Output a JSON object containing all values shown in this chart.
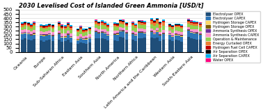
{
  "title": "2030 Levelised Cost of Islanded Green Ammonia [USD/t]",
  "regions": [
    "Oceania",
    "Europe",
    "Sub-Saharan Africa",
    "Eastern Asia",
    "Southern Asia",
    "North America",
    "Northern Africa",
    "Latin America and the Caribbean",
    "Western Asia",
    "South-Eastern Asia"
  ],
  "legend_labels": [
    "Electrolyser OPEX",
    "Electrolyser CAPEX",
    "Hydrogen Storage CAPEX",
    "Hydrogen Storage OPEX",
    "Ammonia Synthesis OPEX",
    "Ammonia Synthesis CAPEX",
    "Operation & Maintenance",
    "Energy Curtailed OPEX",
    "Hydrogen Fuel Cell CAPEX",
    "Air Separation OPEX",
    "Air Separation CAPEX",
    "Water OPEX"
  ],
  "colors": [
    "#1f4e79",
    "#2e75b6",
    "#ffd966",
    "#7f6000",
    "#7030a0",
    "#ff99cc",
    "#92d050",
    "#ed7d31",
    "#c00000",
    "#000000",
    "#00b0f0",
    "#ff0080"
  ],
  "data": [
    [
      150,
      145,
      135,
      100,
      145,
      155,
      150,
      155,
      140,
      160
    ],
    [
      60,
      60,
      55,
      50,
      60,
      65,
      60,
      60,
      55,
      65
    ],
    [
      5,
      5,
      5,
      5,
      5,
      5,
      5,
      5,
      5,
      5
    ],
    [
      5,
      5,
      5,
      5,
      5,
      5,
      5,
      5,
      5,
      5
    ],
    [
      8,
      8,
      8,
      8,
      8,
      8,
      8,
      8,
      8,
      8
    ],
    [
      30,
      30,
      30,
      30,
      30,
      30,
      30,
      30,
      30,
      30
    ],
    [
      45,
      42,
      45,
      42,
      45,
      45,
      45,
      45,
      42,
      45
    ],
    [
      20,
      15,
      20,
      15,
      20,
      20,
      20,
      40,
      15,
      20
    ],
    [
      15,
      12,
      15,
      12,
      12,
      15,
      12,
      15,
      12,
      15
    ],
    [
      5,
      5,
      5,
      5,
      5,
      5,
      5,
      5,
      5,
      5
    ],
    [
      10,
      10,
      10,
      10,
      10,
      10,
      10,
      10,
      10,
      10
    ],
    [
      3,
      3,
      3,
      3,
      3,
      3,
      3,
      3,
      3,
      3
    ]
  ],
  "ylim": [
    0,
    500
  ],
  "yticks": [
    0,
    50,
    100,
    150,
    200,
    250,
    300,
    350,
    400,
    450,
    500
  ],
  "bar_width": 0.6,
  "num_bars_per_group": 5
}
